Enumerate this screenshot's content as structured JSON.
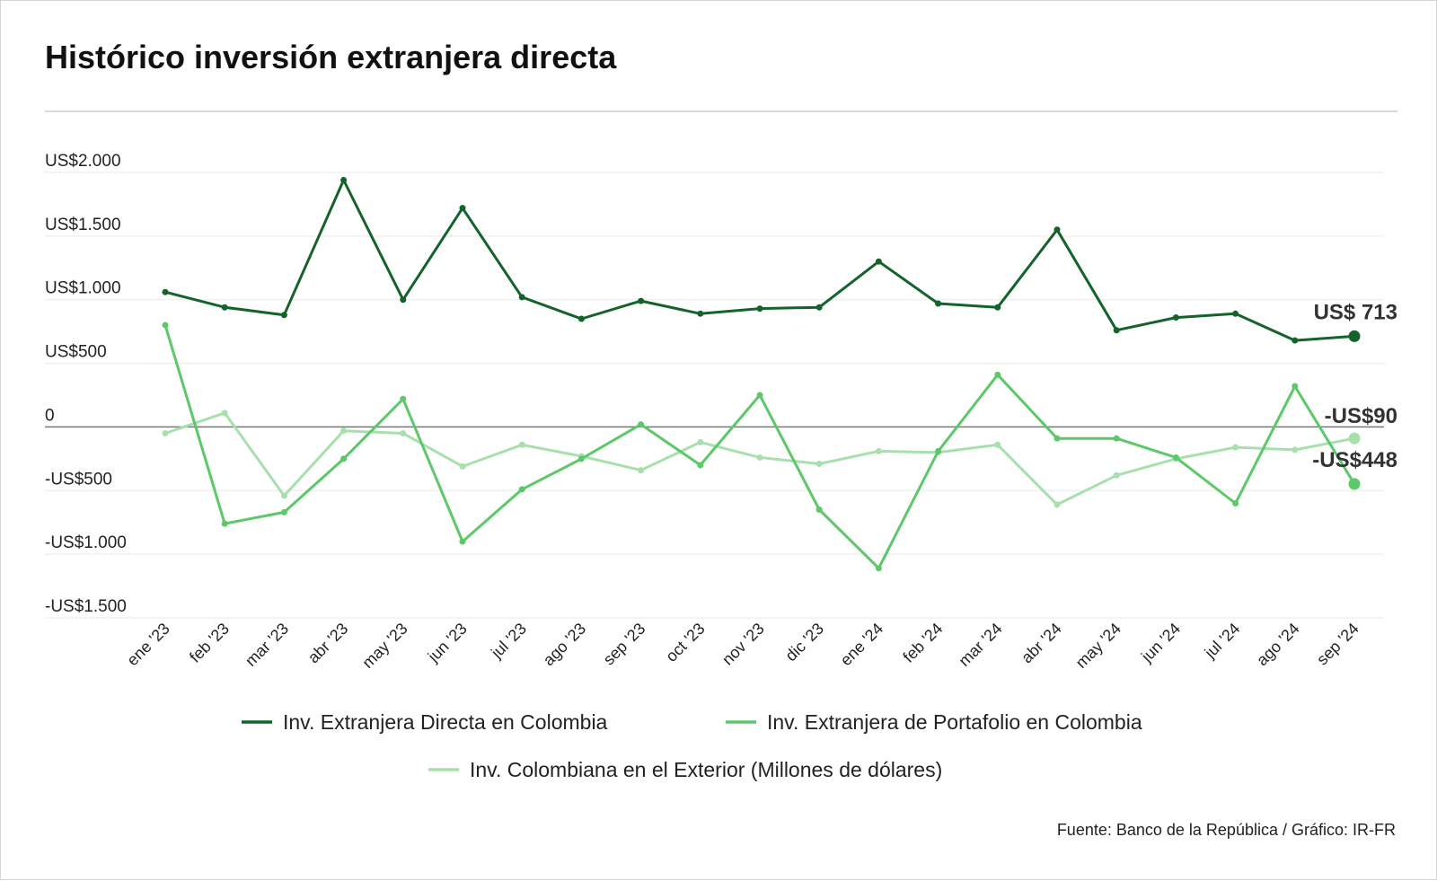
{
  "title": "Histórico inversión extranjera directa",
  "source": "Fuente: Banco de la República / Gráfico: IR-FR",
  "colors": {
    "dark": "#14632a",
    "mid": "#5cc86a",
    "light": "#a8e0ad",
    "grid": "#e8e8e8",
    "zero": "#777777",
    "rule": "#d9d9d9"
  },
  "chart_data": {
    "type": "line",
    "title": "Histórico inversión extranjera directa",
    "ylim": [
      -1500,
      2000
    ],
    "yticks": [
      2000,
      1500,
      1000,
      500,
      0,
      -500,
      -1000,
      -1500
    ],
    "ytick_labels": [
      "US$2.000",
      "US$1.500",
      "US$1.000",
      "US$500",
      "0",
      "-US$500",
      "-US$1.000",
      "-US$1.500"
    ],
    "categories": [
      "ene '23",
      "feb '23",
      "mar '23",
      "abr '23",
      "may '23",
      "jun '23",
      "jul '23",
      "ago '23",
      "sep '23",
      "oct '23",
      "nov '23",
      "dic '23",
      "ene '24",
      "feb '24",
      "mar '24",
      "abr '24",
      "may '24",
      "jun '24",
      "jul '24",
      "ago '24",
      "sep '24"
    ],
    "grid": true,
    "legend_position": "bottom",
    "series": [
      {
        "name": "Inv. Extranjera Directa en Colombia",
        "color": "#14632a",
        "values": [
          1060,
          940,
          880,
          1940,
          1000,
          1720,
          1020,
          850,
          990,
          890,
          930,
          940,
          1300,
          970,
          940,
          1550,
          760,
          860,
          890,
          680,
          713
        ],
        "end_label": "US$ 713"
      },
      {
        "name": "Inv. Extranjera de Portafolio en Colombia",
        "color": "#5cc86a",
        "values": [
          800,
          -760,
          -670,
          -250,
          220,
          -900,
          -490,
          -250,
          20,
          -300,
          250,
          -650,
          -1110,
          -190,
          410,
          -90,
          -90,
          -240,
          -600,
          320,
          -448
        ],
        "end_label": "-US$448"
      },
      {
        "name": "Inv. Colombiana en el Exterior (Millones de dólares)",
        "color": "#a8e0ad",
        "values": [
          -50,
          110,
          -540,
          -30,
          -50,
          -310,
          -140,
          -230,
          -340,
          -120,
          -240,
          -290,
          -190,
          -200,
          -140,
          -610,
          -380,
          -250,
          -160,
          -180,
          -90
        ],
        "end_label": "-US$90"
      }
    ]
  }
}
